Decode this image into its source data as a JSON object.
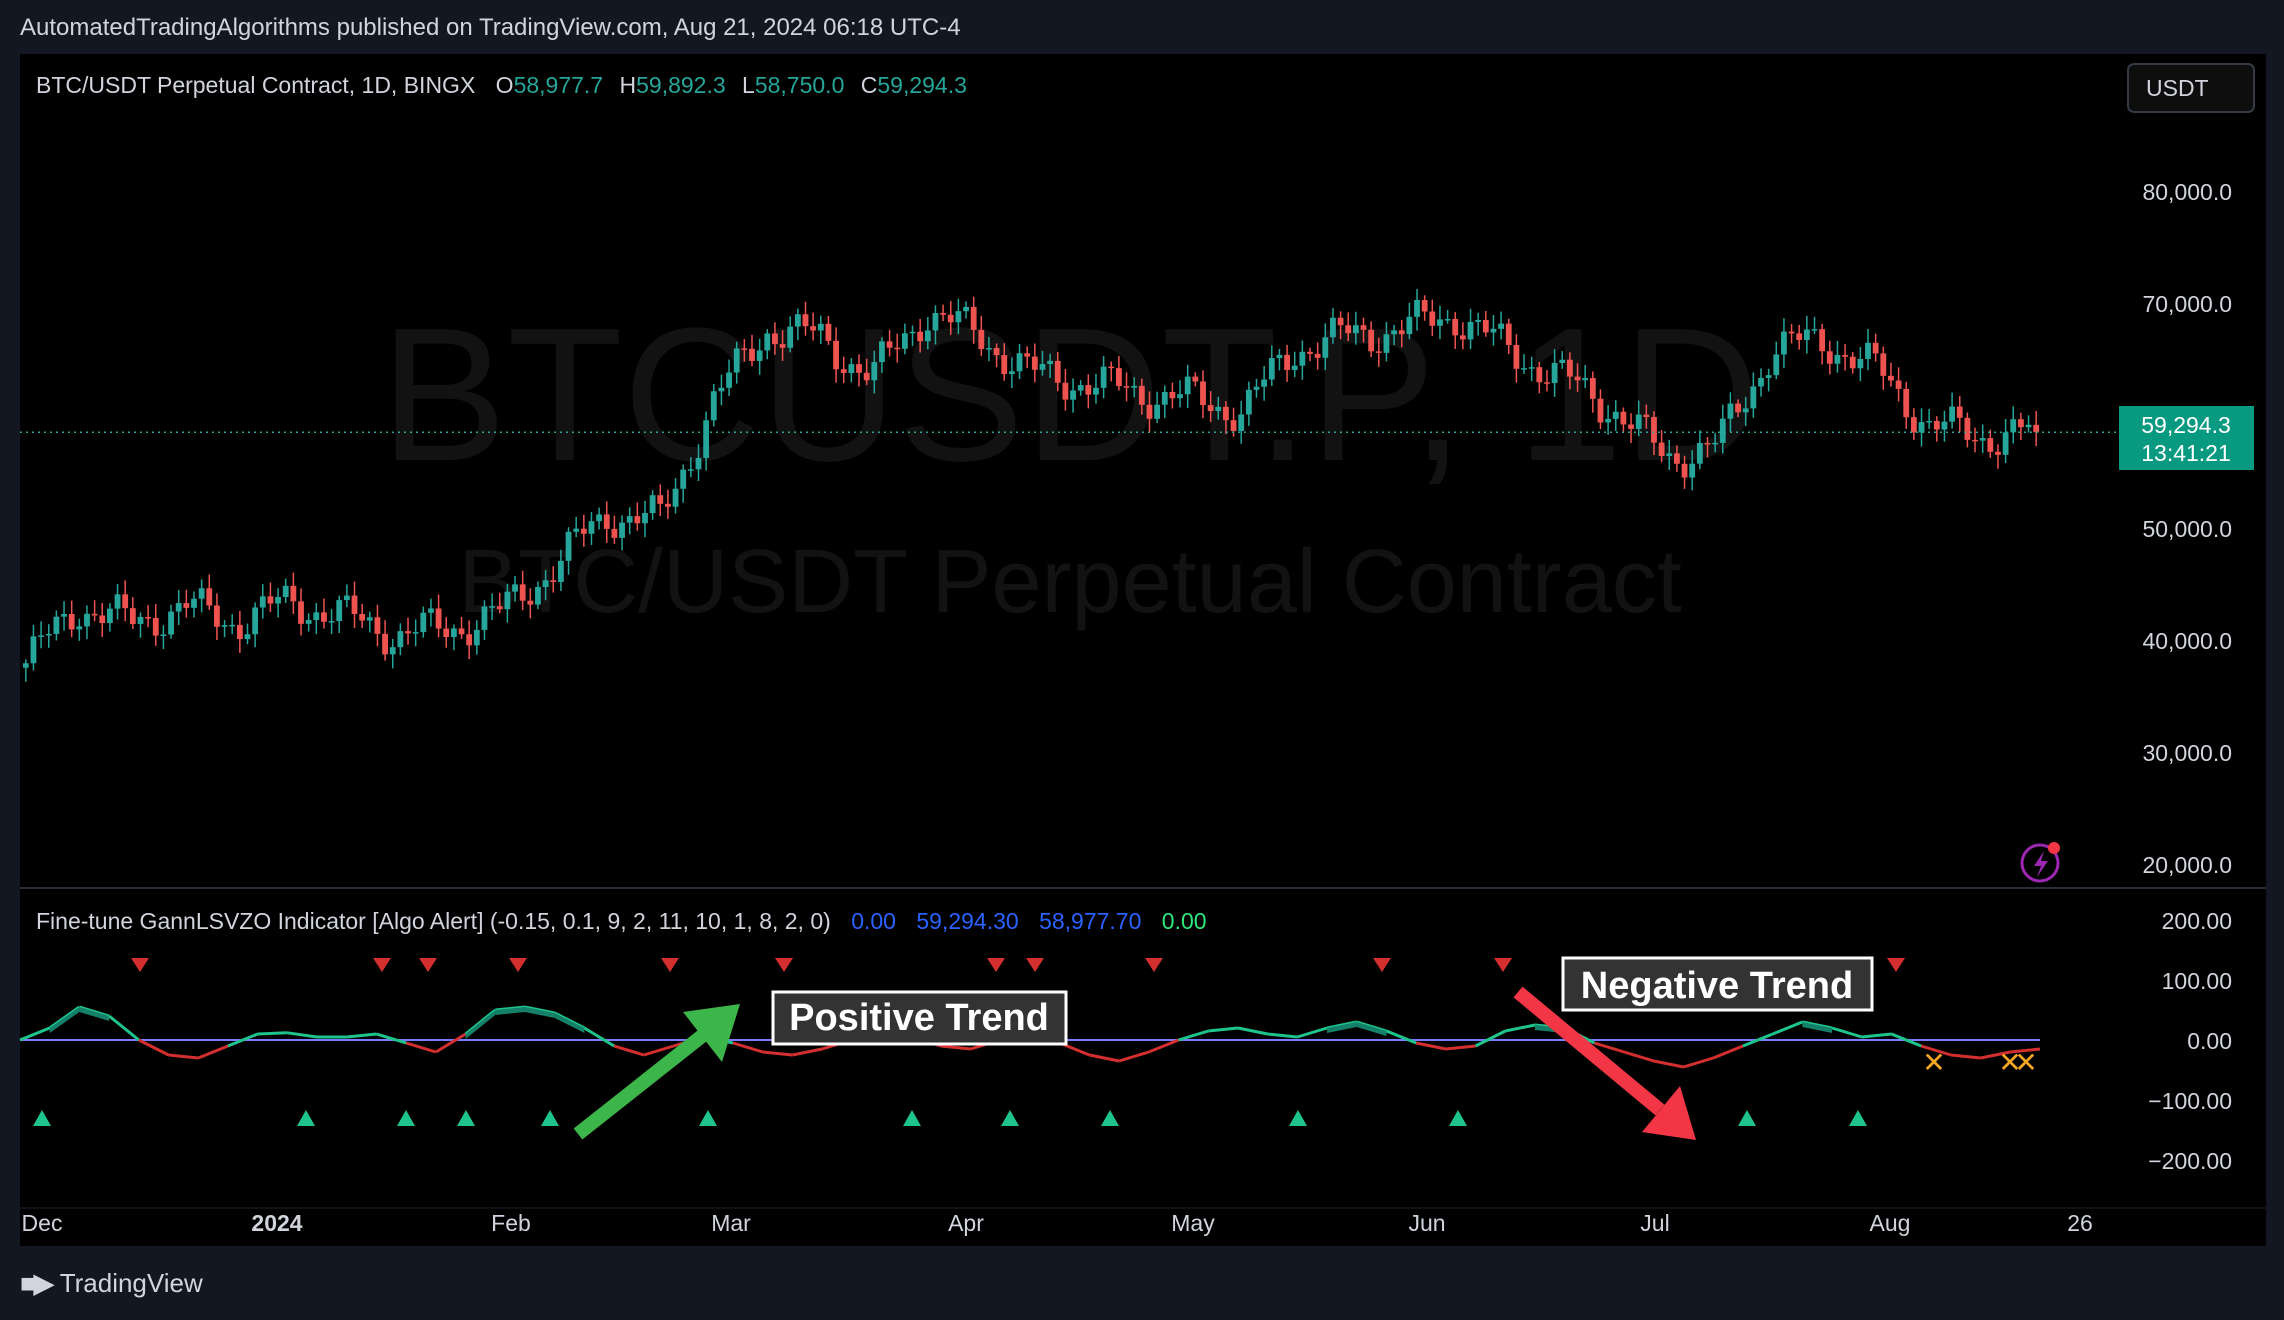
{
  "header": {
    "published": "AutomatedTradingAlgorithms published on TradingView.com, Aug 21, 2024 06:18 UTC-4"
  },
  "legend": {
    "symbol": "BTC/USDT Perpetual Contract, 1D, BINGX",
    "open_label": "O",
    "open": "58,977.7",
    "high_label": "H",
    "high": "59,892.3",
    "low_label": "L",
    "low": "58,750.0",
    "close_label": "C",
    "close": "59,294.3"
  },
  "currency_button": "USDT",
  "watermark": {
    "line1": "BTCUSDT.P, 1D",
    "line2": "BTC/USDT Perpetual Contract"
  },
  "price_tag": {
    "price": "59,294.3",
    "countdown": "13:41:21"
  },
  "indicator_legend": {
    "title": "Fine-tune GannLSVZO Indicator [Algo Alert] (-0.15, 0.1, 9, 2, 11, 10, 1, 8, 2, 0)",
    "v1": "0.00",
    "v2": "59,294.30",
    "v3": "58,977.70",
    "v4": "0.00"
  },
  "annotations": {
    "positive": "Positive Trend",
    "negative": "Negative Trend"
  },
  "footer": {
    "brand": "TradingView"
  },
  "colors": {
    "up": "#26a69a",
    "down": "#ef5350",
    "bg": "#000000",
    "axis_text": "#d1d4dc",
    "zero_line": "#7b7bff"
  },
  "chart_data": [
    {
      "type": "candlestick",
      "title": "BTC/USDT Perpetual Contract, 1D, BINGX",
      "ylim": [
        20000,
        83000
      ],
      "y_ticks": [
        "80,000.0",
        "70,000.0",
        "50,000.0",
        "40,000.0",
        "30,000.0",
        "20,000.0"
      ],
      "y_tick_values": [
        80000,
        70000,
        50000,
        40000,
        30000,
        20000
      ],
      "x_ticks": [
        "Dec",
        "2024",
        "Feb",
        "Mar",
        "Apr",
        "May",
        "Jun",
        "Jul",
        "Aug",
        "26"
      ],
      "x": [
        "2023-12-01",
        "2023-12-08",
        "2023-12-15",
        "2023-12-22",
        "2023-12-29",
        "2024-01-05",
        "2024-01-12",
        "2024-01-19",
        "2024-01-26",
        "2024-02-02",
        "2024-02-09",
        "2024-02-16",
        "2024-02-23",
        "2024-03-01",
        "2024-03-08",
        "2024-03-15",
        "2024-03-22",
        "2024-03-29",
        "2024-04-05",
        "2024-04-12",
        "2024-04-19",
        "2024-04-26",
        "2024-05-03",
        "2024-05-10",
        "2024-05-17",
        "2024-05-24",
        "2024-05-31",
        "2024-06-07",
        "2024-06-14",
        "2024-06-21",
        "2024-06-28",
        "2024-07-05",
        "2024-07-12",
        "2024-07-19",
        "2024-07-26",
        "2024-08-02",
        "2024-08-09",
        "2024-08-16",
        "2024-08-21"
      ],
      "close": [
        38700,
        43800,
        42300,
        43700,
        42400,
        44200,
        42900,
        41300,
        41800,
        43200,
        47500,
        52000,
        51500,
        62000,
        68500,
        67800,
        64200,
        70000,
        68000,
        64500,
        63800,
        62800,
        62300,
        61200,
        66800,
        67900,
        68500,
        69800,
        66700,
        64200,
        61500,
        57000,
        58200,
        66700,
        67500,
        64800,
        59800,
        59000,
        59294.3
      ],
      "last_price": 59294.3
    },
    {
      "type": "line",
      "title": "Fine-tune GannLSVZO Indicator [Algo Alert] (-0.15, 0.1, 9, 2, 11, 10, 1, 8, 2, 0)",
      "ylim": [
        -240,
        240
      ],
      "y_ticks": [
        "200.00",
        "100.00",
        "0.00",
        "−100.00",
        "−200.00"
      ],
      "y_tick_values": [
        200,
        100,
        0,
        -100,
        -200
      ],
      "values": [
        0,
        20,
        55,
        40,
        0,
        -25,
        -30,
        -10,
        10,
        12,
        5,
        5,
        10,
        -5,
        -20,
        10,
        50,
        55,
        45,
        20,
        -10,
        -25,
        -10,
        5,
        -5,
        -20,
        -25,
        -15,
        0,
        10,
        5,
        -10,
        -15,
        0,
        10,
        -5,
        -25,
        -35,
        -20,
        0,
        15,
        20,
        10,
        5,
        20,
        30,
        15,
        -5,
        -15,
        -10,
        15,
        25,
        20,
        -5,
        -20,
        -35,
        -45,
        -30,
        -10,
        10,
        30,
        20,
        5,
        10,
        -10,
        -25,
        -30,
        -20,
        -15
      ],
      "buy_signal_count": 16,
      "sell_signal_count": 15,
      "exit_signal_count": 3
    }
  ]
}
